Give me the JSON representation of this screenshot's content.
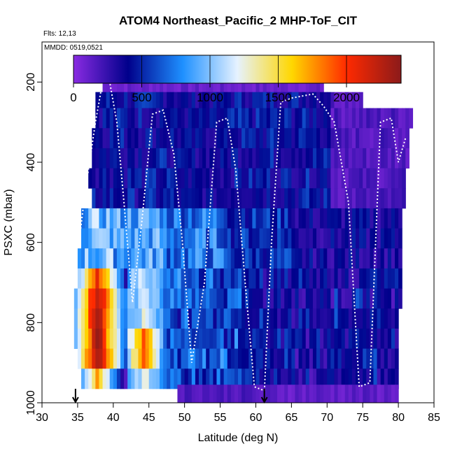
{
  "chart_data": {
    "type": "heatmap",
    "title": "ATOM4 Northeast_Pacific_2 MHP-ToF_CIT",
    "annotations": [
      "Flts: 12,13",
      "MMDD: 0519,0521"
    ],
    "xlabel": "Latitude (deg N)",
    "ylabel": "PSXC (mbar)",
    "xlim": [
      30,
      85
    ],
    "ylim": [
      1000,
      100
    ],
    "x_ticks": [
      "30",
      "35",
      "40",
      "45",
      "50",
      "55",
      "60",
      "65",
      "70",
      "75",
      "80",
      "85"
    ],
    "y_ticks": [
      "200",
      "400",
      "600",
      "800",
      "1000"
    ],
    "colorbar": {
      "min": 0,
      "max": 2400,
      "ticks": [
        "0",
        "500",
        "1000",
        "1500",
        "2000"
      ],
      "colors": [
        "#8a2be2",
        "#00008b",
        "#1e90ff",
        "#e6f2ff",
        "#ffd700",
        "#ff2a00",
        "#8b1a1a"
      ]
    },
    "markers": [
      {
        "x": 34.7,
        "label": "arrow"
      },
      {
        "x": 61.2,
        "label": "arrow"
      }
    ],
    "row_bands": [
      {
        "p": 200,
        "x0": 38.5,
        "x1": 69.5,
        "kind": "purple"
      },
      {
        "p": 250,
        "x0": 37.5,
        "x1": 75,
        "kind": "upper"
      },
      {
        "p": 290,
        "x0": 37.5,
        "x1": 82,
        "kind": "upper"
      },
      {
        "p": 340,
        "x0": 37,
        "x1": 81.5,
        "kind": "upper"
      },
      {
        "p": 390,
        "x0": 37,
        "x1": 81.5,
        "kind": "upper"
      },
      {
        "p": 440,
        "x0": 36.5,
        "x1": 81,
        "kind": "upper"
      },
      {
        "p": 490,
        "x0": 37,
        "x1": 81,
        "kind": "upper"
      },
      {
        "p": 540,
        "x0": 35.5,
        "x1": 80.5,
        "kind": "mid"
      },
      {
        "p": 590,
        "x0": 35.5,
        "x1": 80.5,
        "kind": "mid"
      },
      {
        "p": 640,
        "x0": 35,
        "x1": 80.5,
        "kind": "mid"
      },
      {
        "p": 690,
        "x0": 35,
        "x1": 80.5,
        "kind": "low"
      },
      {
        "p": 740,
        "x0": 34.5,
        "x1": 80.5,
        "kind": "low"
      },
      {
        "p": 790,
        "x0": 34.5,
        "x1": 80,
        "kind": "low"
      },
      {
        "p": 840,
        "x0": 34.5,
        "x1": 80,
        "kind": "low"
      },
      {
        "p": 890,
        "x0": 35,
        "x1": 80,
        "kind": "low"
      },
      {
        "p": 940,
        "x0": 35.5,
        "x1": 80,
        "kind": "low"
      },
      {
        "p": 980,
        "x0": 49,
        "x1": 80,
        "kind": "bottom"
      }
    ],
    "flight_profile_lat": [
      35.2,
      36,
      37.5,
      38.5,
      39.5,
      40.5,
      41.5,
      42.7,
      44,
      45.5,
      47,
      48.5,
      49.7,
      51,
      52.8,
      54.5,
      56,
      57.2,
      58.5,
      59.8,
      61.2,
      62.2,
      63.5,
      65,
      66.5,
      68,
      69.5,
      71,
      73,
      74.5,
      76,
      77.5,
      79,
      80,
      81
    ],
    "flight_profile_p": [
      600,
      480,
      300,
      200,
      200,
      300,
      500,
      750,
      550,
      280,
      270,
      380,
      600,
      900,
      700,
      300,
      290,
      420,
      700,
      960,
      970,
      600,
      250,
      240,
      235,
      230,
      260,
      300,
      500,
      960,
      950,
      300,
      290,
      400,
      340
    ]
  }
}
